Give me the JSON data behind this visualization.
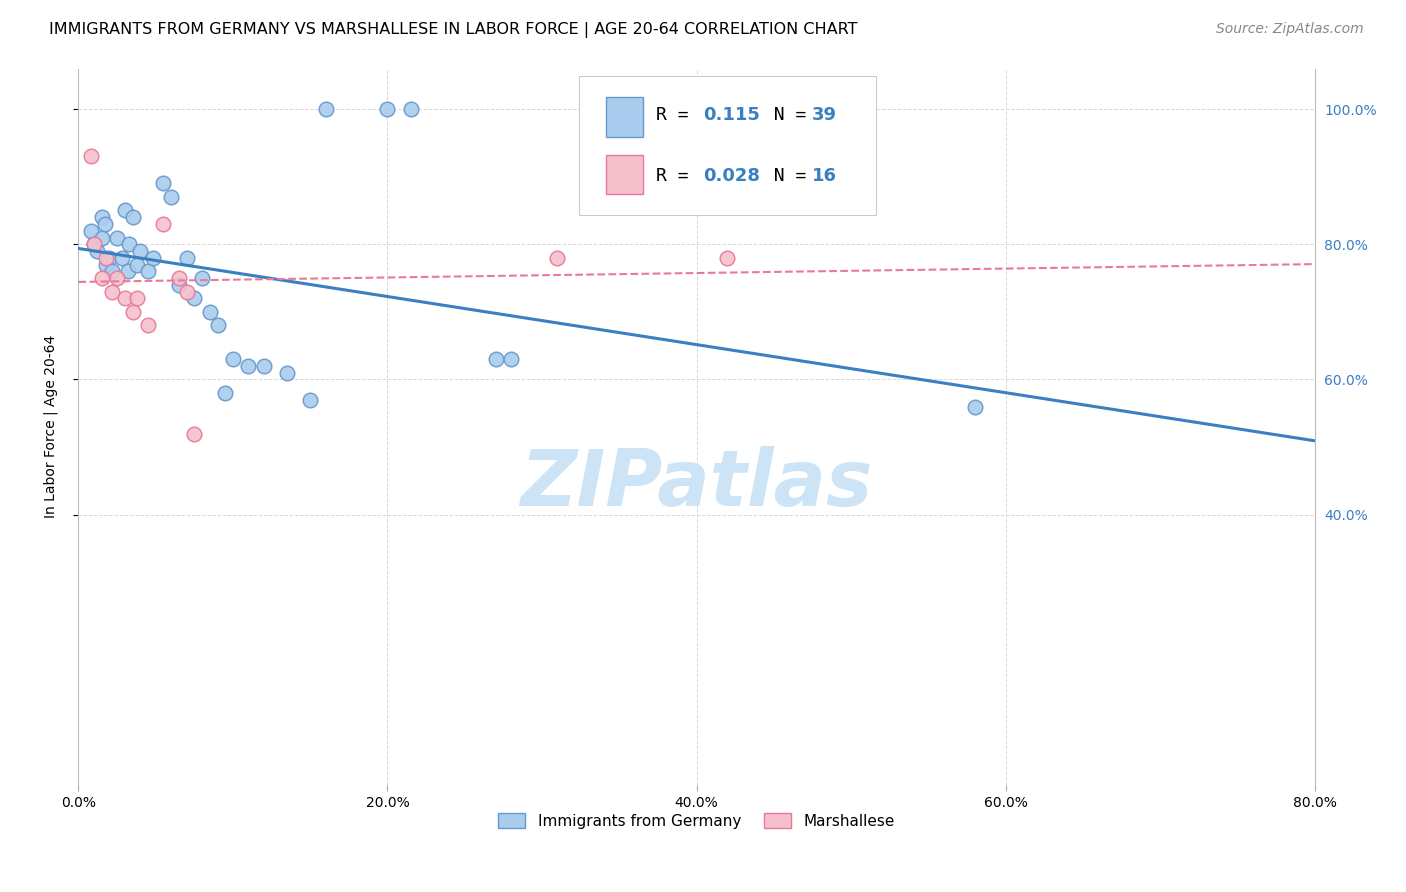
{
  "title": "IMMIGRANTS FROM GERMANY VS MARSHALLESE IN LABOR FORCE | AGE 20-64 CORRELATION CHART",
  "source": "Source: ZipAtlas.com",
  "ylabel": "In Labor Force | Age 20-64",
  "xlim": [
    0.0,
    0.8
  ],
  "ylim": [
    0.0,
    1.06
  ],
  "xtick_labels": [
    "0.0%",
    "20.0%",
    "40.0%",
    "60.0%",
    "80.0%"
  ],
  "xtick_positions": [
    0.0,
    0.2,
    0.4,
    0.6,
    0.8
  ],
  "ytick_labels": [
    "40.0%",
    "60.0%",
    "80.0%",
    "100.0%"
  ],
  "ytick_positions": [
    0.4,
    0.6,
    0.8,
    1.0
  ],
  "background_color": "#ffffff",
  "grid_color": "#d8d8d8",
  "blue_scatter_x": [
    0.008,
    0.01,
    0.012,
    0.015,
    0.015,
    0.017,
    0.018,
    0.02,
    0.022,
    0.025,
    0.028,
    0.03,
    0.032,
    0.033,
    0.035,
    0.038,
    0.04,
    0.045,
    0.048,
    0.055,
    0.06,
    0.065,
    0.07,
    0.075,
    0.08,
    0.085,
    0.09,
    0.095,
    0.1,
    0.11,
    0.12,
    0.135,
    0.15,
    0.16,
    0.2,
    0.215,
    0.27,
    0.28,
    0.58
  ],
  "blue_scatter_y": [
    0.82,
    0.8,
    0.79,
    0.84,
    0.81,
    0.83,
    0.77,
    0.78,
    0.76,
    0.81,
    0.78,
    0.85,
    0.76,
    0.8,
    0.84,
    0.77,
    0.79,
    0.76,
    0.78,
    0.89,
    0.87,
    0.74,
    0.78,
    0.72,
    0.75,
    0.7,
    0.68,
    0.58,
    0.63,
    0.62,
    0.62,
    0.61,
    0.57,
    1.0,
    1.0,
    1.0,
    0.63,
    0.63,
    0.56
  ],
  "pink_scatter_x": [
    0.008,
    0.01,
    0.015,
    0.018,
    0.022,
    0.025,
    0.03,
    0.035,
    0.038,
    0.045,
    0.055,
    0.065,
    0.07,
    0.075,
    0.31,
    0.42
  ],
  "pink_scatter_y": [
    0.93,
    0.8,
    0.75,
    0.78,
    0.73,
    0.75,
    0.72,
    0.7,
    0.72,
    0.68,
    0.83,
    0.75,
    0.73,
    0.52,
    0.78,
    0.78
  ],
  "blue_R": 0.115,
  "blue_N": 39,
  "pink_R": 0.028,
  "pink_N": 16,
  "blue_line_color": "#3a7fc1",
  "pink_line_color": "#e8799a",
  "blue_scatter_facecolor": "#aaccee",
  "blue_scatter_edgecolor": "#6699cc",
  "pink_scatter_facecolor": "#f5c0cc",
  "pink_scatter_edgecolor": "#e8799a",
  "blue_legend_facecolor": "#aaccee",
  "blue_legend_edgecolor": "#6699cc",
  "pink_legend_facecolor": "#f5c0cc",
  "pink_legend_edgecolor": "#e8799a",
  "watermark_text": "ZIPatlas",
  "watermark_color": "#cce4f5",
  "title_fontsize": 11.5,
  "axis_label_fontsize": 10,
  "tick_fontsize": 10,
  "source_fontsize": 10,
  "right_ytick_color": "#3a7fc1"
}
